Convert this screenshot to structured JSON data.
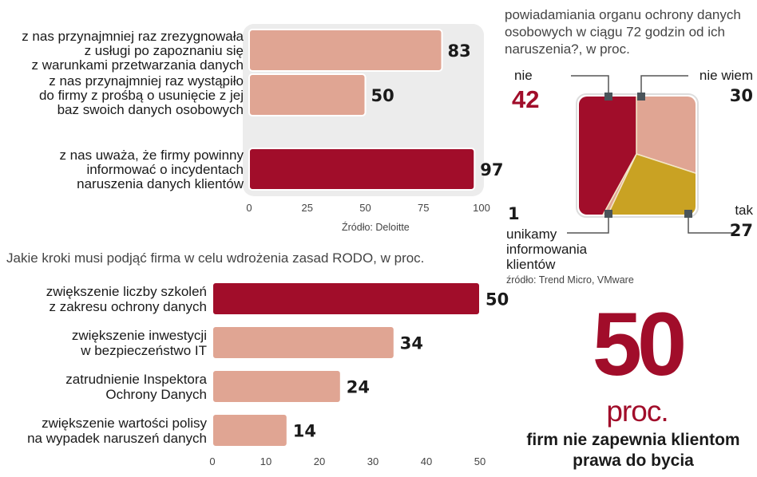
{
  "colors": {
    "dark_red": "#a10d2a",
    "salmon": "#e0a593",
    "mustard": "#c9a223",
    "panel": "#ececec"
  },
  "chart_data": [
    {
      "type": "bar",
      "orientation": "horizontal",
      "categories": [
        [
          "z nas przynajmniej raz zrezygnowała",
          "z usługi po zapoznaniu się",
          "z warunkami przetwarzania danych"
        ],
        [
          "z nas przynajmniej raz wystąpiło",
          "do firmy z prośbą o usunięcie z jej",
          "baz swoich danych osobowych"
        ],
        [
          "z nas uważa, że firmy powinny",
          "informować o incydentach",
          "naruszenia danych klientów"
        ]
      ],
      "values": [
        83,
        50,
        97
      ],
      "highlight": [
        false,
        false,
        true
      ],
      "xlim": [
        0,
        100
      ],
      "xticks": [
        0,
        25,
        50,
        75,
        100
      ],
      "source": "Źródło: Deloitte"
    },
    {
      "type": "bar",
      "orientation": "horizontal",
      "title": "Jakie kroki musi podjąć firma w celu wdrożenia zasad RODO, w proc.",
      "categories": [
        [
          "zwiększenie liczby szkoleń",
          "z zakresu ochrony danych"
        ],
        [
          "zwiększenie inwestycji",
          "w bezpieczeństwo IT"
        ],
        [
          "zatrudnienie Inspektora",
          "Ochrony Danych"
        ],
        [
          "zwiększenie wartości polisy",
          "na wypadek naruszeń danych"
        ]
      ],
      "values": [
        50,
        34,
        24,
        14
      ],
      "highlight": [
        true,
        false,
        false,
        false
      ],
      "xlim": [
        0,
        50
      ],
      "xticks": [
        0,
        10,
        20,
        30,
        40,
        50
      ]
    },
    {
      "type": "pie",
      "title_lines": [
        "powiadamiania organu ochrony danych",
        "osobowych w ciągu 72 godzin od ich",
        "naruszenia?, w proc."
      ],
      "slices": [
        {
          "label": "nie wiem",
          "value": 30,
          "color": "#e0a593"
        },
        {
          "label": "tak",
          "value": 27,
          "color": "#c9a223"
        },
        {
          "label": "unikamy informowania klientów",
          "value": 1,
          "color": "#e0a593"
        },
        {
          "label": "nie",
          "value": 42,
          "color": "#a10d2a"
        }
      ],
      "source": "źródło: Trend Micro, VMware"
    }
  ],
  "callout": {
    "number": "50",
    "unit": "proc.",
    "lines": [
      "firm nie  zapewnia klientom",
      "prawa do bycia"
    ]
  },
  "pie_labels": {
    "nie": "nie",
    "nie_value": "42",
    "nie_wiem": "nie wiem",
    "nie_wiem_value": "30",
    "tak": "tak",
    "tak_value": "27",
    "unikamy_value": "1",
    "unikamy_lines": [
      "unikamy",
      "informowania",
      "klientów"
    ]
  }
}
